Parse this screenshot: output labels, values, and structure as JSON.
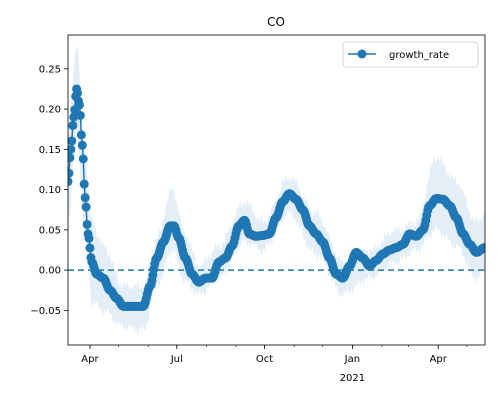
{
  "chart_data": {
    "type": "line",
    "title": "CO",
    "xlabel": "",
    "ylabel": "",
    "grid": false,
    "legend_position": "top-right",
    "legend": [
      "growth_rate"
    ],
    "x_tick_labels": [
      {
        "date": "2020-04-01",
        "label": "Apr",
        "sublabel": ""
      },
      {
        "date": "2020-07-01",
        "label": "Jul",
        "sublabel": ""
      },
      {
        "date": "2020-10-01",
        "label": "Oct",
        "sublabel": ""
      },
      {
        "date": "2021-01-01",
        "label": "Jan",
        "sublabel": "2021"
      },
      {
        "date": "2021-04-01",
        "label": "Apr",
        "sublabel": ""
      }
    ],
    "xlim": [
      "2020-03-09",
      "2021-05-20"
    ],
    "ylim": [
      -0.093,
      0.292
    ],
    "y_ticks": [
      -0.05,
      0.0,
      0.05,
      0.1,
      0.15,
      0.2,
      0.25
    ],
    "reference_line": {
      "y": 0.0,
      "style": "dashed",
      "color": "#1f77b4"
    },
    "series_color": "#1f77b4",
    "band_color": "#1f77b4",
    "series": [
      {
        "name": "growth_rate",
        "knots": [
          {
            "x": "2020-03-09",
            "y": 0.11
          },
          {
            "x": "2020-03-12",
            "y": 0.15
          },
          {
            "x": "2020-03-15",
            "y": 0.19
          },
          {
            "x": "2020-03-18",
            "y": 0.225
          },
          {
            "x": "2020-03-21",
            "y": 0.205
          },
          {
            "x": "2020-03-24",
            "y": 0.155
          },
          {
            "x": "2020-03-27",
            "y": 0.09
          },
          {
            "x": "2020-03-30",
            "y": 0.045
          },
          {
            "x": "2020-04-03",
            "y": 0.01
          },
          {
            "x": "2020-04-08",
            "y": -0.005
          },
          {
            "x": "2020-04-15",
            "y": -0.01
          },
          {
            "x": "2020-04-22",
            "y": -0.025
          },
          {
            "x": "2020-04-29",
            "y": -0.035
          },
          {
            "x": "2020-05-06",
            "y": -0.045
          },
          {
            "x": "2020-05-13",
            "y": -0.045
          },
          {
            "x": "2020-05-20",
            "y": -0.045
          },
          {
            "x": "2020-05-27",
            "y": -0.045
          },
          {
            "x": "2020-06-03",
            "y": -0.02
          },
          {
            "x": "2020-06-10",
            "y": 0.015
          },
          {
            "x": "2020-06-17",
            "y": 0.035
          },
          {
            "x": "2020-06-24",
            "y": 0.055
          },
          {
            "x": "2020-06-28",
            "y": 0.055
          },
          {
            "x": "2020-07-03",
            "y": 0.04
          },
          {
            "x": "2020-07-10",
            "y": 0.015
          },
          {
            "x": "2020-07-17",
            "y": -0.005
          },
          {
            "x": "2020-07-24",
            "y": -0.015
          },
          {
            "x": "2020-07-31",
            "y": -0.01
          },
          {
            "x": "2020-08-07",
            "y": -0.01
          },
          {
            "x": "2020-08-14",
            "y": 0.01
          },
          {
            "x": "2020-08-21",
            "y": 0.015
          },
          {
            "x": "2020-08-28",
            "y": 0.03
          },
          {
            "x": "2020-09-04",
            "y": 0.055
          },
          {
            "x": "2020-09-10",
            "y": 0.062
          },
          {
            "x": "2020-09-15",
            "y": 0.045
          },
          {
            "x": "2020-09-22",
            "y": 0.042
          },
          {
            "x": "2020-09-29",
            "y": 0.043
          },
          {
            "x": "2020-10-06",
            "y": 0.045
          },
          {
            "x": "2020-10-13",
            "y": 0.065
          },
          {
            "x": "2020-10-20",
            "y": 0.085
          },
          {
            "x": "2020-10-27",
            "y": 0.095
          },
          {
            "x": "2020-11-03",
            "y": 0.088
          },
          {
            "x": "2020-11-10",
            "y": 0.075
          },
          {
            "x": "2020-11-17",
            "y": 0.055
          },
          {
            "x": "2020-11-24",
            "y": 0.045
          },
          {
            "x": "2020-12-01",
            "y": 0.035
          },
          {
            "x": "2020-12-08",
            "y": 0.015
          },
          {
            "x": "2020-12-15",
            "y": -0.005
          },
          {
            "x": "2020-12-22",
            "y": -0.01
          },
          {
            "x": "2020-12-29",
            "y": 0.005
          },
          {
            "x": "2021-01-05",
            "y": 0.022
          },
          {
            "x": "2021-01-12",
            "y": 0.015
          },
          {
            "x": "2021-01-19",
            "y": 0.005
          },
          {
            "x": "2021-01-26",
            "y": 0.012
          },
          {
            "x": "2021-02-02",
            "y": 0.02
          },
          {
            "x": "2021-02-09",
            "y": 0.025
          },
          {
            "x": "2021-02-16",
            "y": 0.028
          },
          {
            "x": "2021-02-23",
            "y": 0.032
          },
          {
            "x": "2021-03-02",
            "y": 0.045
          },
          {
            "x": "2021-03-09",
            "y": 0.042
          },
          {
            "x": "2021-03-16",
            "y": 0.05
          },
          {
            "x": "2021-03-23",
            "y": 0.08
          },
          {
            "x": "2021-03-30",
            "y": 0.089
          },
          {
            "x": "2021-04-06",
            "y": 0.088
          },
          {
            "x": "2021-04-13",
            "y": 0.08
          },
          {
            "x": "2021-04-20",
            "y": 0.065
          },
          {
            "x": "2021-04-27",
            "y": 0.045
          },
          {
            "x": "2021-05-04",
            "y": 0.032
          },
          {
            "x": "2021-05-11",
            "y": 0.022
          },
          {
            "x": "2021-05-20",
            "y": 0.028
          }
        ]
      }
    ],
    "uncertainty_band": [
      {
        "x": "2020-03-09",
        "lower": 0.06,
        "upper": 0.17
      },
      {
        "x": "2020-03-18",
        "lower": 0.17,
        "upper": 0.28
      },
      {
        "x": "2020-03-27",
        "lower": 0.045,
        "upper": 0.14
      },
      {
        "x": "2020-04-03",
        "lower": -0.04,
        "upper": 0.06
      },
      {
        "x": "2020-04-15",
        "lower": -0.05,
        "upper": 0.03
      },
      {
        "x": "2020-05-06",
        "lower": -0.07,
        "upper": -0.02
      },
      {
        "x": "2020-05-27",
        "lower": -0.075,
        "upper": -0.02
      },
      {
        "x": "2020-06-10",
        "lower": -0.02,
        "upper": 0.04
      },
      {
        "x": "2020-06-26",
        "lower": 0.025,
        "upper": 0.1
      },
      {
        "x": "2020-07-10",
        "lower": -0.015,
        "upper": 0.045
      },
      {
        "x": "2020-07-24",
        "lower": -0.03,
        "upper": 0.005
      },
      {
        "x": "2020-08-14",
        "lower": -0.01,
        "upper": 0.03
      },
      {
        "x": "2020-09-10",
        "lower": 0.035,
        "upper": 0.085
      },
      {
        "x": "2020-09-29",
        "lower": 0.025,
        "upper": 0.06
      },
      {
        "x": "2020-10-27",
        "lower": 0.07,
        "upper": 0.115
      },
      {
        "x": "2020-11-24",
        "lower": 0.02,
        "upper": 0.07
      },
      {
        "x": "2020-12-22",
        "lower": -0.03,
        "upper": 0.01
      },
      {
        "x": "2021-01-19",
        "lower": -0.01,
        "upper": 0.025
      },
      {
        "x": "2021-02-16",
        "lower": 0.01,
        "upper": 0.05
      },
      {
        "x": "2021-03-09",
        "lower": 0.025,
        "upper": 0.06
      },
      {
        "x": "2021-03-30",
        "lower": 0.05,
        "upper": 0.14
      },
      {
        "x": "2021-04-20",
        "lower": 0.03,
        "upper": 0.11
      },
      {
        "x": "2021-05-11",
        "lower": -0.01,
        "upper": 0.06
      },
      {
        "x": "2021-05-20",
        "lower": 0.0,
        "upper": 0.07
      }
    ]
  }
}
